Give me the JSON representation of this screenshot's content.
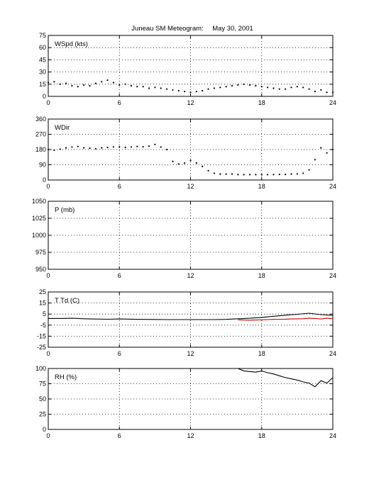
{
  "figure": {
    "title": "Juneau SM Meteogram:",
    "date": "May 30, 2001"
  },
  "chart_data": [
    {
      "type": "line",
      "panel_label": "WSpd (kts)",
      "xlim": [
        0,
        24
      ],
      "xticks": [
        "0",
        "6",
        "12",
        "18",
        "24"
      ],
      "ylim": [
        0,
        75
      ],
      "yticks": [
        "0",
        "15",
        "30",
        "45",
        "60",
        "75"
      ],
      "grid": true,
      "series": [
        {
          "style": "points",
          "color": "#000000",
          "x": [
            0,
            0.5,
            1,
            1.5,
            2,
            2.5,
            3,
            3.5,
            4,
            4.5,
            5,
            5.5,
            6,
            6.5,
            7,
            7.5,
            8,
            8.5,
            9,
            9.5,
            10,
            10.5,
            11,
            11.5,
            12,
            12.5,
            13,
            13.5,
            14,
            14.5,
            15,
            15.5,
            16,
            16.5,
            17,
            17.5,
            18,
            18.5,
            19,
            19.5,
            20,
            20.5,
            21,
            21.5,
            22,
            22.5,
            23,
            23.5,
            24
          ],
          "y": [
            17,
            18,
            15,
            16,
            13,
            12,
            14,
            13,
            16,
            18,
            20,
            17,
            14,
            15,
            13,
            12,
            12,
            10,
            11,
            10,
            9,
            8,
            7,
            6,
            5,
            6,
            7,
            9,
            10,
            11,
            12,
            13,
            14,
            15,
            14,
            13,
            12,
            11,
            10,
            9,
            9,
            11,
            12,
            11,
            9,
            6,
            8,
            5,
            5
          ]
        }
      ]
    },
    {
      "type": "scatter",
      "panel_label": "WDir",
      "xlim": [
        0,
        24
      ],
      "xticks": [
        "0",
        "6",
        "12",
        "18",
        "24"
      ],
      "ylim": [
        0,
        360
      ],
      "yticks": [
        "0",
        "90",
        "180",
        "270",
        "360"
      ],
      "grid": true,
      "series": [
        {
          "style": "points",
          "color": "#000000",
          "x": [
            0,
            0.5,
            1,
            1.5,
            2,
            2.5,
            3,
            3.5,
            4,
            4.5,
            5,
            5.5,
            6,
            6.5,
            7,
            7.5,
            8,
            8.5,
            9,
            9.5,
            10,
            10.5,
            11,
            11.5,
            12,
            12.5,
            13,
            13.5,
            14,
            14.5,
            15,
            15.5,
            16,
            16.5,
            17,
            17.5,
            18,
            18.5,
            19,
            19.5,
            20,
            20.5,
            21,
            21.5,
            22,
            22.5,
            23,
            23.5,
            24
          ],
          "y": [
            180,
            176,
            182,
            190,
            195,
            198,
            190,
            188,
            185,
            190,
            192,
            195,
            196,
            192,
            195,
            198,
            196,
            200,
            210,
            195,
            180,
            110,
            95,
            100,
            115,
            100,
            80,
            55,
            40,
            35,
            35,
            35,
            32,
            32,
            32,
            32,
            32,
            32,
            32,
            33,
            33,
            35,
            36,
            40,
            60,
            120,
            190,
            160,
            180
          ]
        }
      ]
    },
    {
      "type": "line",
      "panel_label": "P (mb)",
      "xlim": [
        0,
        24
      ],
      "xticks": [
        "0",
        "6",
        "12",
        "18",
        "24"
      ],
      "ylim": [
        950,
        1050
      ],
      "yticks": [
        "950",
        "975",
        "1000",
        "1025",
        "1050"
      ],
      "grid": true,
      "series": []
    },
    {
      "type": "line",
      "panel_label": "T Td (C)",
      "xlim": [
        0,
        24
      ],
      "xticks": [
        "0",
        "6",
        "12",
        "18",
        "24"
      ],
      "ylim": [
        -25,
        25
      ],
      "yticks": [
        "-25",
        "-15",
        "-5",
        "5",
        "15",
        "25"
      ],
      "grid": true,
      "series": [
        {
          "style": "line",
          "color": "#000000",
          "x": [
            0,
            1,
            2,
            3,
            4,
            5,
            6,
            7,
            8,
            9,
            10,
            11,
            12,
            13,
            14,
            15,
            16,
            17,
            18,
            19,
            20,
            21,
            22,
            23,
            24
          ],
          "y": [
            1,
            1,
            1.2,
            0.8,
            0.5,
            0.3,
            0.6,
            0.4,
            0.2,
            0.1,
            0,
            0,
            0,
            0,
            0,
            0.2,
            0.8,
            1.2,
            2,
            3,
            4,
            4.8,
            5.8,
            4.5,
            3.8
          ]
        },
        {
          "style": "line",
          "color": "#cc0000",
          "x": [
            16,
            16.5,
            17,
            17.5,
            18,
            18.5,
            19,
            19.5,
            20,
            20.5,
            21,
            21.5,
            22,
            22.5,
            23,
            23.5,
            24
          ],
          "y": [
            -0.2,
            -0.4,
            -0.5,
            -0.4,
            -0.2,
            0,
            0.2,
            0.3,
            0.4,
            0.6,
            0.7,
            0.8,
            1.2,
            1,
            0.6,
            1.2,
            0.8
          ]
        }
      ]
    },
    {
      "type": "line",
      "panel_label": "RH (%)",
      "xlim": [
        0,
        24
      ],
      "xticks": [
        "0",
        "6",
        "12",
        "18",
        "24"
      ],
      "ylim": [
        0,
        100
      ],
      "yticks": [
        "0",
        "25",
        "50",
        "75",
        "100"
      ],
      "grid": true,
      "series": [
        {
          "style": "line",
          "color": "#000000",
          "x": [
            16,
            16.5,
            17,
            17.5,
            18,
            18.5,
            19,
            19.5,
            20,
            20.5,
            21,
            21.5,
            22,
            22.5,
            23,
            23.5,
            24
          ],
          "y": [
            100,
            96,
            95,
            94,
            96,
            93,
            91,
            88,
            85,
            83,
            81,
            78,
            76,
            70,
            80,
            76,
            85
          ]
        }
      ]
    }
  ]
}
